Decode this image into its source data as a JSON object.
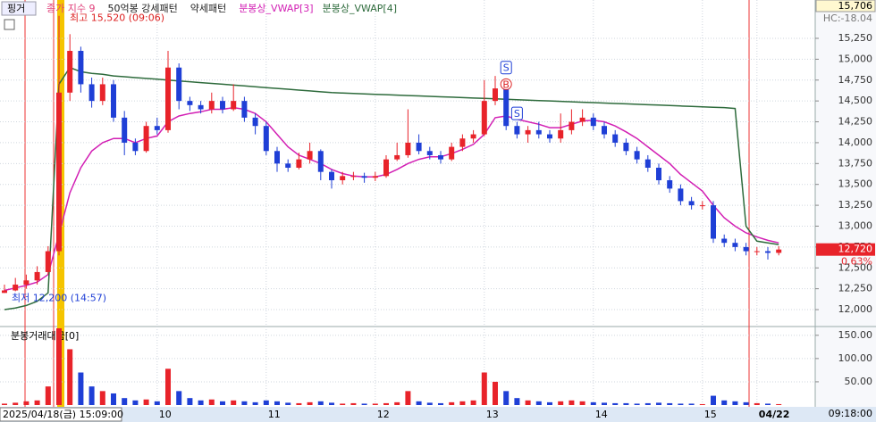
{
  "header": {
    "ticker": "핑거",
    "indicators": [
      {
        "text": "종가 지수 9",
        "color": "#e0407a"
      },
      {
        "text": "50억봉 강세패턴",
        "color": "#222222"
      },
      {
        "text": "약세패턴",
        "color": "#222222"
      }
    ]
  },
  "chart_data": {
    "type": "candlestick",
    "categories": [
      "2025/04/18(금) 15:09:00",
      null,
      null,
      null,
      null,
      null,
      null,
      null,
      null,
      null,
      null,
      null,
      null,
      null,
      "10",
      null,
      null,
      null,
      null,
      null,
      null,
      null,
      null,
      null,
      "11",
      null,
      null,
      null,
      null,
      null,
      null,
      null,
      null,
      null,
      "12",
      null,
      null,
      null,
      null,
      null,
      null,
      null,
      null,
      null,
      "13",
      null,
      null,
      null,
      null,
      null,
      null,
      null,
      null,
      null,
      "14",
      null,
      null,
      null,
      null,
      null,
      null,
      null,
      null,
      null,
      "15",
      null,
      null,
      null,
      null,
      "04/22",
      null,
      null
    ],
    "open": [
      12200,
      12230,
      12300,
      12350,
      12450,
      12700,
      14600,
      15100,
      14700,
      14500,
      14700,
      14300,
      14000,
      13900,
      14200,
      14150,
      14900,
      14500,
      14450,
      14400,
      14500,
      14400,
      14500,
      14300,
      14200,
      13900,
      13750,
      13700,
      13800,
      13900,
      13650,
      13550,
      13600,
      13600,
      13580,
      13600,
      13800,
      13850,
      14000,
      13900,
      13850,
      13800,
      13950,
      14050,
      14100,
      14500,
      14650,
      14200,
      14100,
      14150,
      14100,
      14050,
      14150,
      14250,
      14300,
      14200,
      14100,
      14000,
      13900,
      13800,
      13700,
      13550,
      13450,
      13300,
      13250,
      13250,
      12850,
      12800,
      12750,
      12700,
      12700,
      12680
    ],
    "high": [
      12300,
      12380,
      12420,
      12520,
      12760,
      15520,
      15300,
      15150,
      14780,
      14780,
      14750,
      14380,
      14050,
      14250,
      14300,
      15100,
      14950,
      14550,
      14500,
      14600,
      14550,
      14700,
      14550,
      14350,
      14250,
      13950,
      13800,
      13880,
      14000,
      13920,
      13680,
      13650,
      13650,
      13640,
      13650,
      13850,
      14000,
      14400,
      14100,
      13950,
      13900,
      14000,
      14100,
      14150,
      14750,
      14800,
      14700,
      14250,
      14200,
      14250,
      14150,
      14350,
      14400,
      14400,
      14350,
      14250,
      14150,
      14050,
      13950,
      13850,
      13750,
      13600,
      13500,
      13350,
      13300,
      13300,
      12900,
      12850,
      12800,
      12750,
      12750,
      12760
    ],
    "low": [
      12200,
      12220,
      12250,
      12300,
      12420,
      12650,
      14500,
      14600,
      14420,
      14450,
      14250,
      13850,
      13850,
      13880,
      14100,
      14120,
      14400,
      14380,
      14350,
      14350,
      14350,
      14380,
      14250,
      14100,
      13850,
      13650,
      13650,
      13680,
      13750,
      13550,
      13450,
      13500,
      13550,
      13520,
      13540,
      13580,
      13780,
      13820,
      13860,
      13800,
      13750,
      13780,
      13900,
      14000,
      14080,
      14450,
      14150,
      14050,
      14000,
      14050,
      14000,
      14000,
      14100,
      14200,
      14150,
      14050,
      13950,
      13850,
      13750,
      13650,
      13500,
      13400,
      13250,
      13200,
      13200,
      12800,
      12750,
      12700,
      12650,
      12650,
      12600,
      12650
    ],
    "close": [
      12230,
      12300,
      12350,
      12450,
      12700,
      14600,
      15100,
      14700,
      14500,
      14700,
      14300,
      14000,
      13900,
      14200,
      14150,
      14900,
      14500,
      14450,
      14400,
      14500,
      14400,
      14500,
      14300,
      14200,
      13900,
      13750,
      13700,
      13800,
      13900,
      13650,
      13550,
      13600,
      13600,
      13580,
      13600,
      13800,
      13850,
      14000,
      13900,
      13850,
      13800,
      13950,
      14050,
      14100,
      14500,
      14650,
      14200,
      14100,
      14150,
      14100,
      14050,
      14150,
      14250,
      14300,
      14200,
      14100,
      14000,
      13900,
      13800,
      13700,
      13550,
      13450,
      13300,
      13250,
      13250,
      12850,
      12800,
      12750,
      12700,
      12700,
      12680,
      12720
    ],
    "up_color": "#e8232a",
    "down_color": "#1f3fd6",
    "series": [
      {
        "name": "분봉상_VWAP[3]",
        "color": "#d21fb4",
        "values": [
          12230,
          12260,
          12290,
          12330,
          12420,
          12900,
          13400,
          13700,
          13900,
          14000,
          14050,
          14050,
          14000,
          14050,
          14080,
          14250,
          14320,
          14350,
          14370,
          14400,
          14400,
          14420,
          14400,
          14350,
          14250,
          14100,
          13950,
          13850,
          13800,
          13750,
          13680,
          13630,
          13600,
          13590,
          13590,
          13620,
          13680,
          13750,
          13800,
          13830,
          13830,
          13870,
          13920,
          13980,
          14100,
          14300,
          14320,
          14280,
          14250,
          14220,
          14180,
          14180,
          14220,
          14260,
          14270,
          14250,
          14200,
          14130,
          14050,
          13950,
          13850,
          13750,
          13620,
          13520,
          13420,
          13250,
          13100,
          13000,
          12920,
          12870,
          12830,
          12800
        ]
      },
      {
        "name": "분봉상_VWAP[4]",
        "color": "#2e6b3c",
        "values": [
          12000,
          12020,
          12050,
          12100,
          12200,
          14700,
          14900,
          14850,
          14830,
          14820,
          14800,
          14790,
          14780,
          14770,
          14760,
          14750,
          14740,
          14730,
          14720,
          14710,
          14700,
          14690,
          14680,
          14670,
          14660,
          14650,
          14640,
          14630,
          14620,
          14610,
          14600,
          14595,
          14590,
          14585,
          14580,
          14575,
          14570,
          14565,
          14560,
          14555,
          14550,
          14545,
          14540,
          14535,
          14530,
          14525,
          14520,
          14515,
          14510,
          14505,
          14500,
          14495,
          14490,
          14485,
          14480,
          14475,
          14470,
          14465,
          14460,
          14455,
          14450,
          14445,
          14440,
          14435,
          14430,
          14425,
          14420,
          14410,
          13000,
          12820,
          12800,
          12780
        ]
      }
    ],
    "ylim": [
      11808,
      15517
    ],
    "yticks": [
      {
        "value": 12000,
        "label": "12,000"
      },
      {
        "value": 12250,
        "label": "12,250"
      },
      {
        "value": 12500,
        "label": "12,500"
      },
      {
        "value": 12750,
        "label": "12,750"
      },
      {
        "value": 13000,
        "label": "13,000"
      },
      {
        "value": 13250,
        "label": "13,250"
      },
      {
        "value": 13500,
        "label": "13,500"
      },
      {
        "value": 13750,
        "label": "13,750"
      },
      {
        "value": 14000,
        "label": "14,000"
      },
      {
        "value": 14250,
        "label": "14,250"
      },
      {
        "value": 14500,
        "label": "14,500"
      },
      {
        "value": 14750,
        "label": "14,750"
      },
      {
        "value": 15000,
        "label": "15,000"
      },
      {
        "value": 15250,
        "label": "15,250"
      }
    ],
    "annotations": {
      "high": "최고 15,520 (09:06)",
      "low": "최저 12,200 (14:57)"
    },
    "signals": [
      "S",
      "B",
      "S"
    ],
    "volume_title": "분봉거래대금[0]",
    "volume": [
      3,
      5,
      8,
      10,
      40,
      165,
      120,
      70,
      40,
      30,
      25,
      15,
      10,
      12,
      8,
      78,
      30,
      15,
      10,
      12,
      8,
      10,
      8,
      6,
      10,
      8,
      5,
      4,
      6,
      8,
      5,
      3,
      4,
      3,
      3,
      4,
      6,
      30,
      8,
      5,
      4,
      6,
      8,
      10,
      70,
      50,
      30,
      15,
      10,
      8,
      6,
      8,
      10,
      8,
      6,
      5,
      4,
      4,
      3,
      4,
      5,
      4,
      3,
      3,
      2,
      20,
      10,
      8,
      6,
      4,
      3,
      2
    ],
    "volume_ylim": [
      0,
      165
    ],
    "volume_yticks": [
      {
        "value": 50,
        "label": "50.00"
      },
      {
        "value": 100,
        "label": "100.00"
      },
      {
        "value": 150,
        "label": "150.00"
      }
    ],
    "current_price": {
      "value": 12720,
      "label": "12,720"
    },
    "change": "0.63%",
    "top_value": "15,706",
    "hc": "HC:-18.04",
    "time": "09:18:00",
    "grid": true
  }
}
